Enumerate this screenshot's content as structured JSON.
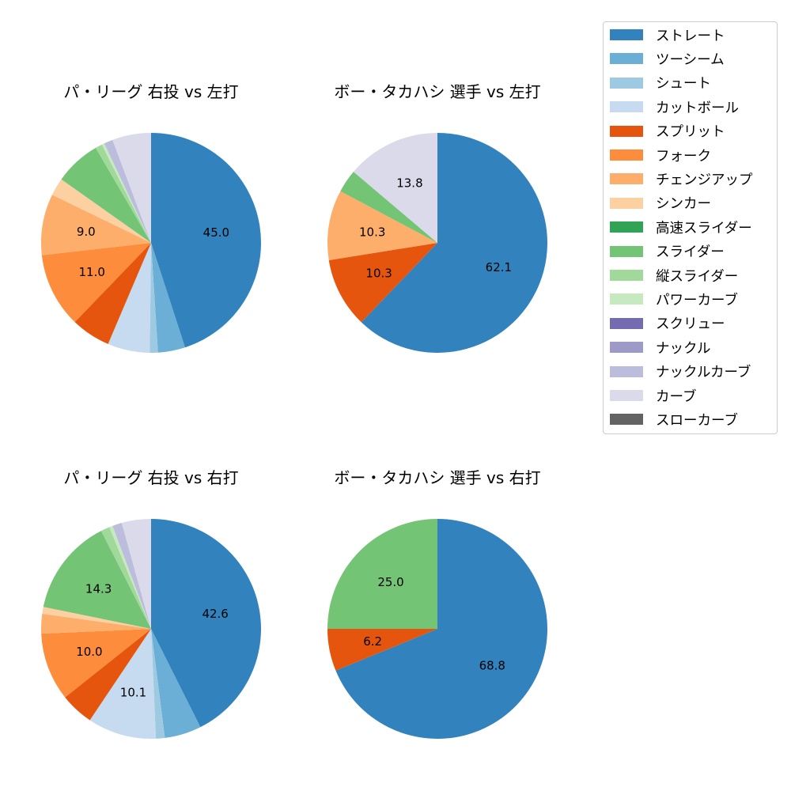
{
  "legend": {
    "items": [
      {
        "label": "ストレート",
        "color": "#3182bd"
      },
      {
        "label": "ツーシーム",
        "color": "#6baed6"
      },
      {
        "label": "シュート",
        "color": "#9ecae1"
      },
      {
        "label": "カットボール",
        "color": "#c6dbef"
      },
      {
        "label": "スプリット",
        "color": "#e6550d"
      },
      {
        "label": "フォーク",
        "color": "#fd8d3c"
      },
      {
        "label": "チェンジアップ",
        "color": "#fdae6b"
      },
      {
        "label": "シンカー",
        "color": "#fdd0a2"
      },
      {
        "label": "高速スライダー",
        "color": "#31a354"
      },
      {
        "label": "スライダー",
        "color": "#74c476"
      },
      {
        "label": "縦スライダー",
        "color": "#a1d99b"
      },
      {
        "label": "パワーカーブ",
        "color": "#c7e9c0"
      },
      {
        "label": "スクリュー",
        "color": "#756bb1"
      },
      {
        "label": "ナックル",
        "color": "#9e9ac8"
      },
      {
        "label": "ナックルカーブ",
        "color": "#bcbddc"
      },
      {
        "label": "カーブ",
        "color": "#dadaeb"
      },
      {
        "label": "スローカーブ",
        "color": "#636363"
      }
    ]
  },
  "chart_data": [
    {
      "type": "pie",
      "title": "パ・リーグ 右投 vs 左打",
      "start_angle": 90,
      "direction": "clockwise",
      "label_threshold": 8,
      "slices": [
        {
          "label": "ストレート",
          "value": 45.0
        },
        {
          "label": "ツーシーム",
          "value": 4.0
        },
        {
          "label": "シュート",
          "value": 1.2
        },
        {
          "label": "カットボール",
          "value": 6.2
        },
        {
          "label": "スプリット",
          "value": 5.8
        },
        {
          "label": "フォーク",
          "value": 11.0
        },
        {
          "label": "チェンジアップ",
          "value": 9.0
        },
        {
          "label": "シンカー",
          "value": 2.6
        },
        {
          "label": "スライダー",
          "value": 6.8
        },
        {
          "label": "縦スライダー",
          "value": 1.0
        },
        {
          "label": "パワーカーブ",
          "value": 0.4
        },
        {
          "label": "ナックルカーブ",
          "value": 1.3
        },
        {
          "label": "カーブ",
          "value": 5.7
        }
      ]
    },
    {
      "type": "pie",
      "title": "ボー・タカハシ 選手 vs 左打",
      "start_angle": 90,
      "direction": "clockwise",
      "label_threshold": 8,
      "slices": [
        {
          "label": "ストレート",
          "value": 62.1
        },
        {
          "label": "スプリット",
          "value": 10.3
        },
        {
          "label": "チェンジアップ",
          "value": 10.3
        },
        {
          "label": "スライダー",
          "value": 3.4
        },
        {
          "label": "カーブ",
          "value": 13.8
        }
      ]
    },
    {
      "type": "pie",
      "title": "パ・リーグ 右投 vs 右打",
      "start_angle": 90,
      "direction": "clockwise",
      "label_threshold": 8,
      "slices": [
        {
          "label": "ストレート",
          "value": 42.6
        },
        {
          "label": "ツーシーム",
          "value": 5.4
        },
        {
          "label": "シュート",
          "value": 1.3
        },
        {
          "label": "カットボール",
          "value": 10.1
        },
        {
          "label": "スプリット",
          "value": 4.9
        },
        {
          "label": "フォーク",
          "value": 10.0
        },
        {
          "label": "チェンジアップ",
          "value": 2.9
        },
        {
          "label": "シンカー",
          "value": 1.0
        },
        {
          "label": "スライダー",
          "value": 14.3
        },
        {
          "label": "縦スライダー",
          "value": 1.3
        },
        {
          "label": "パワーカーブ",
          "value": 0.5
        },
        {
          "label": "ナックルカーブ",
          "value": 1.4
        },
        {
          "label": "カーブ",
          "value": 4.3
        }
      ]
    },
    {
      "type": "pie",
      "title": "ボー・タカハシ 選手 vs 右打",
      "start_angle": 90,
      "direction": "clockwise",
      "label_threshold": 5,
      "slices": [
        {
          "label": "ストレート",
          "value": 68.8
        },
        {
          "label": "スプリット",
          "value": 6.2
        },
        {
          "label": "スライダー",
          "value": 25.0
        }
      ]
    }
  ]
}
